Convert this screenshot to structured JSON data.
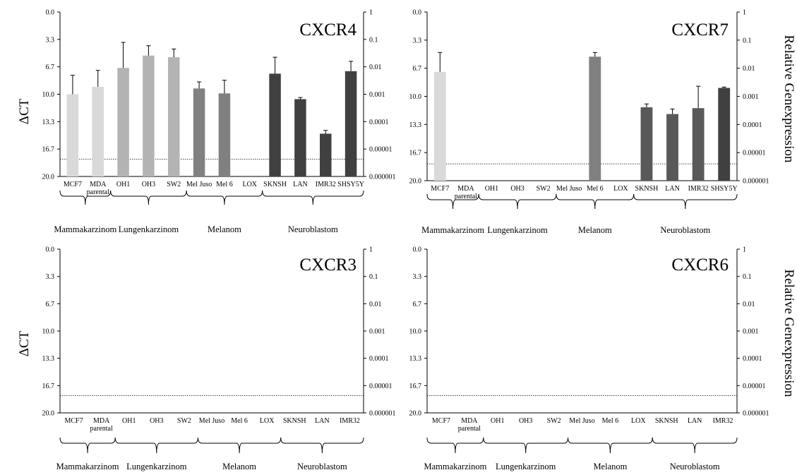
{
  "y_label_left": "ΔCT",
  "y_label_right": "Relative Genexpression",
  "chart_data": [
    {
      "type": "bar",
      "title": "CXCR4",
      "categories": [
        "MCF7",
        "MDA parental",
        "OH1",
        "OH3",
        "SW2",
        "Mel Juso",
        "Mel 6",
        "LOX",
        "SKNSH",
        "LAN",
        "IMR32",
        "SHSY5Y"
      ],
      "groups": [
        {
          "label": "Mammakarzinom",
          "members": [
            "MCF7",
            "MDA parental"
          ]
        },
        {
          "label": "Lungenkarzinom",
          "members": [
            "OH1",
            "OH3",
            "SW2"
          ]
        },
        {
          "label": "Melanom",
          "members": [
            "Mel Juso",
            "Mel 6",
            "LOX"
          ]
        },
        {
          "label": "Neuroblastom",
          "members": [
            "SKNSH",
            "LAN",
            "IMR32",
            "SHSY5Y"
          ]
        }
      ],
      "series": [
        {
          "values": [
            10.0,
            9.1,
            6.8,
            5.3,
            5.5,
            9.3,
            9.9,
            null,
            7.5,
            10.6,
            14.8,
            7.2
          ],
          "errors": [
            2.3,
            2.0,
            3.1,
            1.2,
            1.0,
            0.8,
            1.6,
            null,
            2.0,
            0.2,
            0.4,
            1.2
          ],
          "colors": [
            "#d9d9d9",
            "#d9d9d9",
            "#b3b3b3",
            "#b3b3b3",
            "#b3b3b3",
            "#808080",
            "#808080",
            "#808080",
            "#404040",
            "#404040",
            "#404040",
            "#404040"
          ]
        }
      ],
      "y_left": {
        "ticks": [
          "0.0",
          "3.3",
          "6.7",
          "10.0",
          "13.3",
          "16.7",
          "20.0"
        ],
        "range": [
          0,
          20
        ],
        "inverted": true
      },
      "y_right": {
        "ticks": [
          "1",
          "0.1",
          "0.01",
          "0.001",
          "0.0001",
          "0.00001",
          "0.000001"
        ],
        "scale": "log"
      },
      "threshold_line": 17.9
    },
    {
      "type": "bar",
      "title": "CXCR7",
      "categories": [
        "MCF7",
        "MDA parental",
        "OH1",
        "OH3",
        "SW2",
        "Mel Juso",
        "Mel 6",
        "LOX",
        "SKNSH",
        "LAN",
        "IMR32",
        "SHSY5Y"
      ],
      "groups": [
        {
          "label": "Mammakarzinom",
          "members": [
            "MCF7",
            "MDA parental"
          ]
        },
        {
          "label": "Lungenkarzinom",
          "members": [
            "OH1",
            "OH3",
            "SW2"
          ]
        },
        {
          "label": "Melanom",
          "members": [
            "Mel Juso",
            "Mel 6",
            "LOX"
          ]
        },
        {
          "label": "Neuroblastom",
          "members": [
            "SKNSH",
            "LAN",
            "IMR32",
            "SHSY5Y"
          ]
        }
      ],
      "series": [
        {
          "values": [
            7.1,
            null,
            null,
            null,
            null,
            null,
            5.3,
            null,
            11.3,
            12.1,
            11.4,
            9.0
          ],
          "errors": [
            2.3,
            null,
            null,
            null,
            null,
            null,
            0.5,
            null,
            0.4,
            0.6,
            2.6,
            0.1
          ],
          "colors": [
            "#d9d9d9",
            "#d9d9d9",
            "#b3b3b3",
            "#b3b3b3",
            "#b3b3b3",
            "#808080",
            "#808080",
            "#808080",
            "#595959",
            "#595959",
            "#595959",
            "#404040"
          ]
        }
      ],
      "y_left": {
        "ticks": [
          "0.0",
          "3.3",
          "6.7",
          "10.0",
          "13.3",
          "16.7",
          "20.0"
        ],
        "range": [
          0,
          20
        ],
        "inverted": true
      },
      "y_right": {
        "ticks": [
          "1",
          "0.1",
          "0.01",
          "0.001",
          "0.0001",
          "0.00001",
          "0.000001"
        ],
        "scale": "log"
      },
      "threshold_line": 18.0
    },
    {
      "type": "bar",
      "title": "CXCR3",
      "categories": [
        "MCF7",
        "MDA parental",
        "OH1",
        "OH3",
        "SW2",
        "Mel Juso",
        "Mel 6",
        "LOX",
        "SKNSH",
        "LAN",
        "IMR32"
      ],
      "groups": [
        {
          "label": "Mammakarzinom",
          "members": [
            "MCF7",
            "MDA parental"
          ]
        },
        {
          "label": "Lungenkarzinom",
          "members": [
            "OH1",
            "OH3",
            "SW2"
          ]
        },
        {
          "label": "Melanom",
          "members": [
            "Mel Juso",
            "Mel 6",
            "LOX"
          ]
        },
        {
          "label": "Neuroblastom",
          "members": [
            "SKNSH",
            "LAN",
            "IMR32"
          ]
        }
      ],
      "series": [
        {
          "values": [
            null,
            null,
            null,
            null,
            null,
            null,
            null,
            null,
            null,
            null,
            null
          ],
          "errors": [
            null,
            null,
            null,
            null,
            null,
            null,
            null,
            null,
            null,
            null,
            null
          ],
          "colors": [
            "#d9d9d9",
            "#d9d9d9",
            "#b3b3b3",
            "#b3b3b3",
            "#b3b3b3",
            "#808080",
            "#808080",
            "#808080",
            "#404040",
            "#404040",
            "#404040"
          ]
        }
      ],
      "y_left": {
        "ticks": [
          "0.0",
          "3.3",
          "6.7",
          "10.0",
          "13.3",
          "16.7",
          "20.0"
        ],
        "range": [
          0,
          20
        ],
        "inverted": true
      },
      "y_right": {
        "ticks": [
          "1",
          "0.1",
          "0.01",
          "0.001",
          "0.0001",
          "0.00001",
          "0.000001"
        ],
        "scale": "log"
      },
      "threshold_line": 17.9
    },
    {
      "type": "bar",
      "title": "CXCR6",
      "categories": [
        "MCF7",
        "MDA parental",
        "OH1",
        "OH3",
        "SW2",
        "Mel Juso",
        "Mel 6",
        "LOX",
        "SKNSH",
        "LAN",
        "IMR32"
      ],
      "groups": [
        {
          "label": "Mammakarzinom",
          "members": [
            "MCF7",
            "MDA parental"
          ]
        },
        {
          "label": "Lungenkarzinom",
          "members": [
            "OH1",
            "OH3",
            "SW2"
          ]
        },
        {
          "label": "Melanom",
          "members": [
            "Mel Juso",
            "Mel 6",
            "LOX"
          ]
        },
        {
          "label": "Neuroblastom",
          "members": [
            "SKNSH",
            "LAN",
            "IMR32"
          ]
        }
      ],
      "series": [
        {
          "values": [
            null,
            null,
            null,
            null,
            null,
            null,
            null,
            null,
            null,
            null,
            null
          ],
          "errors": [
            null,
            null,
            null,
            null,
            null,
            null,
            null,
            null,
            null,
            null,
            null
          ],
          "colors": [
            "#d9d9d9",
            "#d9d9d9",
            "#b3b3b3",
            "#b3b3b3",
            "#b3b3b3",
            "#808080",
            "#808080",
            "#808080",
            "#404040",
            "#404040",
            "#404040"
          ]
        }
      ],
      "y_left": {
        "ticks": [
          "0.0",
          "3.3",
          "6.7",
          "10.0",
          "13.3",
          "16.7",
          "20.0"
        ],
        "range": [
          0,
          20
        ],
        "inverted": true
      },
      "y_right": {
        "ticks": [
          "1",
          "0.1",
          "0.01",
          "0.001",
          "0.0001",
          "0.00001",
          "0.000001"
        ],
        "scale": "log"
      },
      "threshold_line": 17.9
    }
  ]
}
